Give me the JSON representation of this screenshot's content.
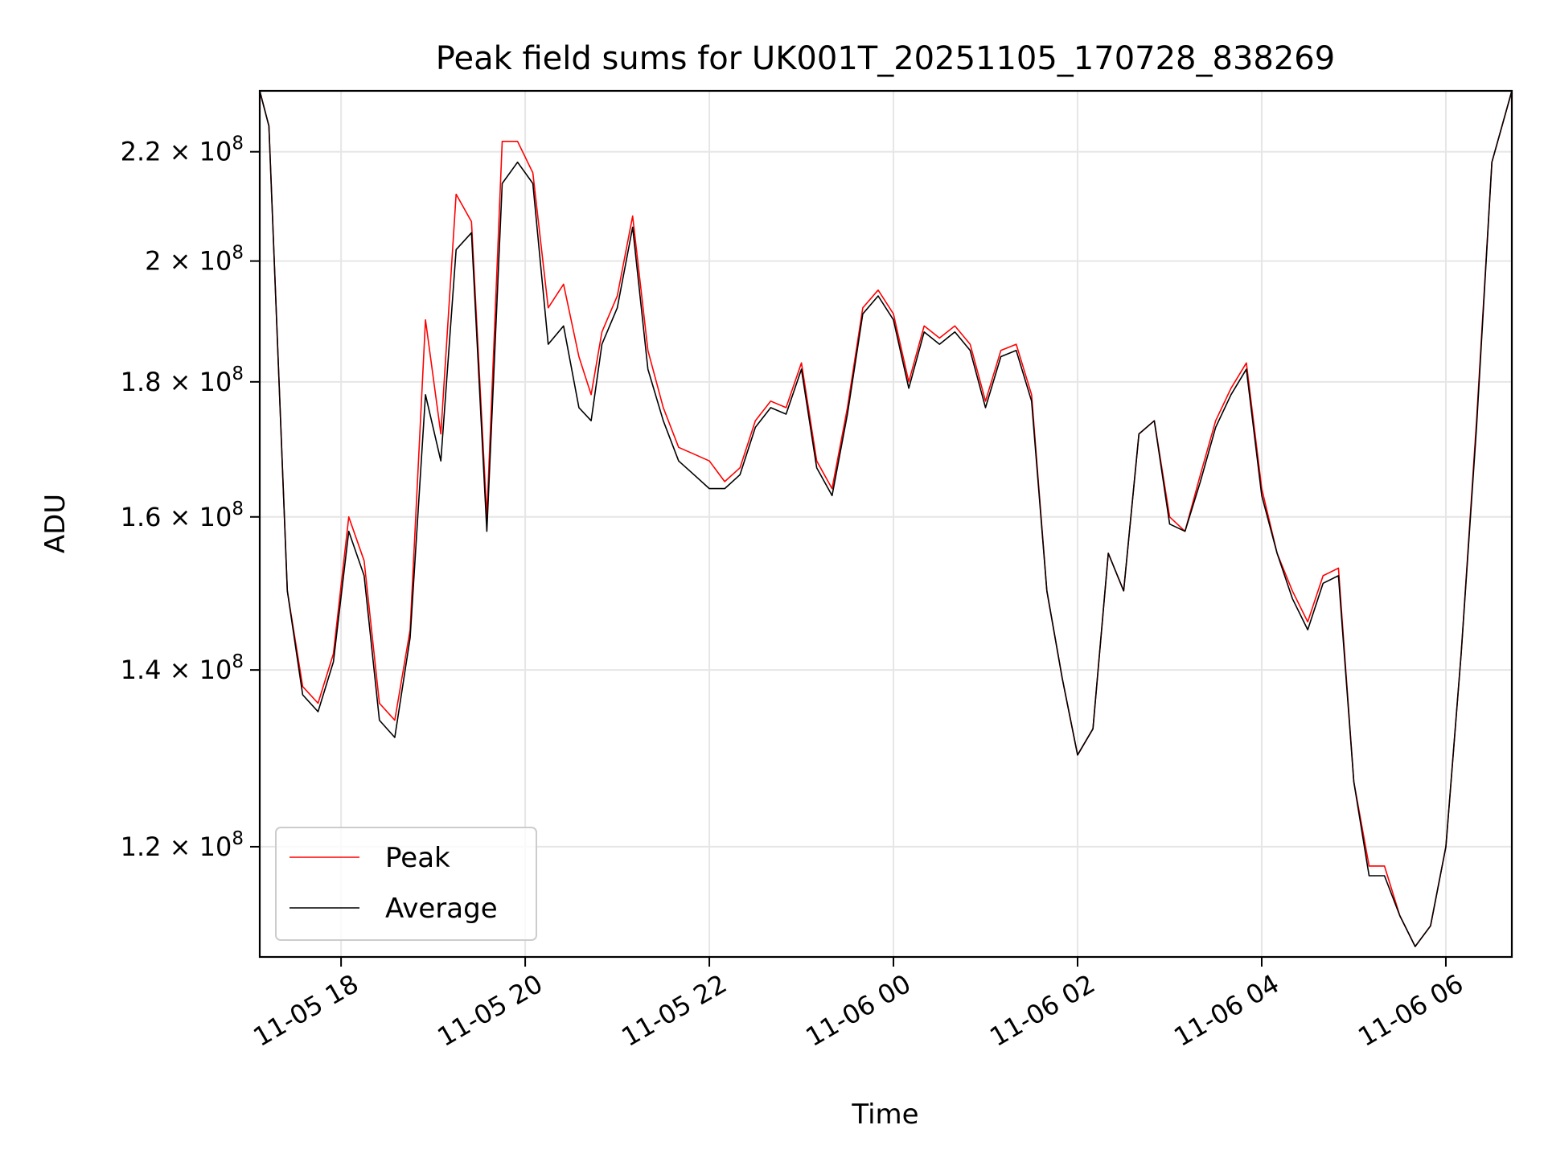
{
  "chart_data": {
    "type": "line",
    "title": "Peak field sums for UK001T_20251105_170728_838269",
    "xlabel": "Time",
    "ylabel": "ADU",
    "yscale": "log",
    "grid": true,
    "legend_position": "lower-left",
    "x_tick_labels": [
      "11-05 18",
      "11-05 20",
      "11-05 22",
      "11-06 00",
      "11-06 02",
      "11-06 04",
      "11-06 06"
    ],
    "y_tick_labels": [
      {
        "value": 120000000,
        "mantissa": "1.2",
        "times": "×",
        "base": "10",
        "exponent": "8"
      },
      {
        "value": 140000000,
        "mantissa": "1.4",
        "times": "×",
        "base": "10",
        "exponent": "8"
      },
      {
        "value": 160000000,
        "mantissa": "1.6",
        "times": "×",
        "base": "10",
        "exponent": "8"
      },
      {
        "value": 180000000,
        "mantissa": "1.8",
        "times": "×",
        "base": "10",
        "exponent": "8"
      },
      {
        "value": 200000000,
        "mantissa": "2",
        "times": "×",
        "base": "10",
        "exponent": "8"
      },
      {
        "value": 220000000,
        "mantissa": "2.2",
        "times": "×",
        "base": "10",
        "exponent": "8"
      }
    ],
    "xlim": [
      "2025-11-05 17:07",
      "2025-11-06 06:43"
    ],
    "ylim": [
      109000000,
      232000000
    ],
    "x": [
      "2025-11-05 17:07",
      "2025-11-05 17:13",
      "2025-11-05 17:25",
      "2025-11-05 17:35",
      "2025-11-05 17:45",
      "2025-11-05 17:55",
      "2025-11-05 18:05",
      "2025-11-05 18:15",
      "2025-11-05 18:25",
      "2025-11-05 18:35",
      "2025-11-05 18:45",
      "2025-11-05 18:55",
      "2025-11-05 19:05",
      "2025-11-05 19:15",
      "2025-11-05 19:25",
      "2025-11-05 19:35",
      "2025-11-05 19:45",
      "2025-11-05 19:55",
      "2025-11-05 20:05",
      "2025-11-05 20:15",
      "2025-11-05 20:25",
      "2025-11-05 20:35",
      "2025-11-05 20:43",
      "2025-11-05 20:50",
      "2025-11-05 21:00",
      "2025-11-05 21:10",
      "2025-11-05 21:20",
      "2025-11-05 21:30",
      "2025-11-05 21:40",
      "2025-11-05 21:50",
      "2025-11-05 22:00",
      "2025-11-05 22:10",
      "2025-11-05 22:20",
      "2025-11-05 22:30",
      "2025-11-05 22:40",
      "2025-11-05 22:50",
      "2025-11-05 23:00",
      "2025-11-05 23:10",
      "2025-11-05 23:20",
      "2025-11-05 23:30",
      "2025-11-05 23:40",
      "2025-11-05 23:50",
      "2025-11-06 00:00",
      "2025-11-06 00:10",
      "2025-11-06 00:20",
      "2025-11-06 00:30",
      "2025-11-06 00:40",
      "2025-11-06 00:50",
      "2025-11-06 01:00",
      "2025-11-06 01:10",
      "2025-11-06 01:20",
      "2025-11-06 01:30",
      "2025-11-06 01:40",
      "2025-11-06 01:50",
      "2025-11-06 02:00",
      "2025-11-06 02:10",
      "2025-11-06 02:20",
      "2025-11-06 02:30",
      "2025-11-06 02:40",
      "2025-11-06 02:50",
      "2025-11-06 03:00",
      "2025-11-06 03:10",
      "2025-11-06 03:20",
      "2025-11-06 03:30",
      "2025-11-06 03:40",
      "2025-11-06 03:50",
      "2025-11-06 04:00",
      "2025-11-06 04:10",
      "2025-11-06 04:20",
      "2025-11-06 04:30",
      "2025-11-06 04:40",
      "2025-11-06 04:50",
      "2025-11-06 05:00",
      "2025-11-06 05:10",
      "2025-11-06 05:20",
      "2025-11-06 05:30",
      "2025-11-06 05:40",
      "2025-11-06 05:50",
      "2025-11-06 06:00",
      "2025-11-06 06:10",
      "2025-11-06 06:20",
      "2025-11-06 06:30",
      "2025-11-06 06:43"
    ],
    "series": [
      {
        "name": "Peak",
        "color": "#ff0000",
        "values": [
          232000000,
          225000000,
          150000000,
          138000000,
          136000000,
          142000000,
          160000000,
          154000000,
          136000000,
          134000000,
          145000000,
          190000000,
          172000000,
          212000000,
          207000000,
          160000000,
          222000000,
          222000000,
          216000000,
          192000000,
          196000000,
          184000000,
          178000000,
          188000000,
          194000000,
          208000000,
          185000000,
          176000000,
          170000000,
          169000000,
          168000000,
          165000000,
          167000000,
          174000000,
          177000000,
          176000000,
          183000000,
          168000000,
          164000000,
          176000000,
          192000000,
          195000000,
          191000000,
          180000000,
          189000000,
          187000000,
          189000000,
          186000000,
          177000000,
          185000000,
          186000000,
          178000000,
          150000000,
          139000000,
          130000000,
          133000000,
          155000000,
          150000000,
          172000000,
          174000000,
          160000000,
          158000000,
          166000000,
          174000000,
          179000000,
          183000000,
          164000000,
          155000000,
          150000000,
          146000000,
          152000000,
          153000000,
          127000000,
          118000000,
          118000000,
          113000000,
          110000000,
          112000000,
          120000000,
          142000000,
          174000000,
          218000000,
          232000000
        ]
      },
      {
        "name": "Average",
        "color": "#000000",
        "values": [
          232000000,
          225000000,
          150000000,
          137000000,
          135000000,
          141000000,
          158000000,
          152000000,
          134000000,
          132000000,
          144000000,
          178000000,
          168000000,
          202000000,
          205000000,
          158000000,
          214000000,
          218000000,
          214000000,
          186000000,
          189000000,
          176000000,
          174000000,
          186000000,
          192000000,
          206000000,
          182000000,
          174000000,
          168000000,
          166000000,
          164000000,
          164000000,
          166000000,
          173000000,
          176000000,
          175000000,
          182000000,
          167000000,
          163000000,
          175000000,
          191000000,
          194000000,
          190000000,
          179000000,
          188000000,
          186000000,
          188000000,
          185000000,
          176000000,
          184000000,
          185000000,
          177000000,
          150000000,
          139000000,
          130000000,
          133000000,
          155000000,
          150000000,
          172000000,
          174000000,
          159000000,
          158000000,
          165000000,
          173000000,
          178000000,
          182000000,
          163000000,
          155000000,
          149000000,
          145000000,
          151000000,
          152000000,
          127000000,
          117000000,
          117000000,
          113000000,
          110000000,
          112000000,
          120000000,
          142000000,
          173000000,
          218000000,
          232000000
        ]
      }
    ]
  }
}
